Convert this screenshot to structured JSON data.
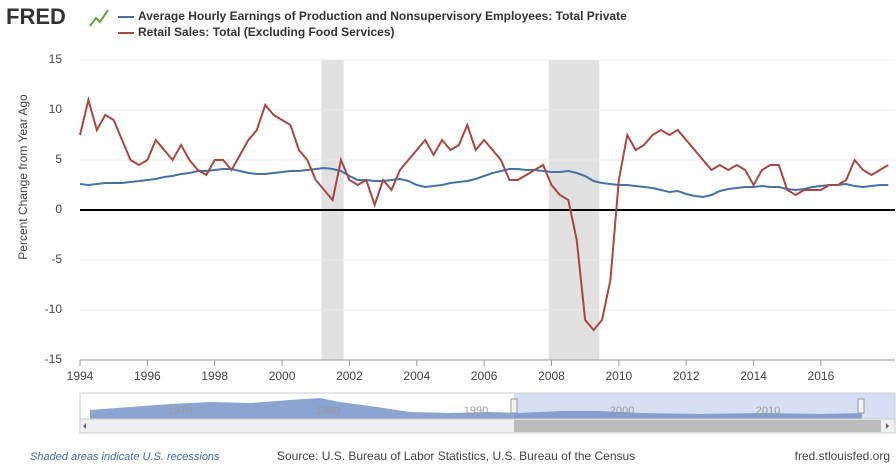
{
  "logo": "FRED",
  "footer": {
    "recessions_note": "Shaded areas indicate U.S. recessions",
    "source": "Source: U.S. Bureau of Labor Statistics, U.S. Bureau of the Census",
    "site": "fred.stlouisfed.org"
  },
  "navigator_labels": [
    "1970",
    "1980",
    "1990",
    "2000",
    "2010"
  ],
  "chart_data": {
    "type": "line",
    "y_label": "Percent Change from Year Ago",
    "xlim": [
      1994,
      2018.2
    ],
    "xticks": [
      1994,
      1996,
      1998,
      2000,
      2002,
      2004,
      2006,
      2008,
      2010,
      2012,
      2014,
      2016
    ],
    "ylim": [
      -15,
      15
    ],
    "yticks": [
      -15,
      -10,
      -5,
      0,
      5,
      10,
      15
    ],
    "grid": true,
    "recessions": [
      [
        2001.17,
        2001.83
      ],
      [
        2007.92,
        2009.42
      ]
    ],
    "x": [
      1994,
      1994.25,
      1994.5,
      1994.75,
      1995,
      1995.25,
      1995.5,
      1995.75,
      1996,
      1996.25,
      1996.5,
      1996.75,
      1997,
      1997.25,
      1997.5,
      1997.75,
      1998,
      1998.25,
      1998.5,
      1998.75,
      1999,
      1999.25,
      1999.5,
      1999.75,
      2000,
      2000.25,
      2000.5,
      2000.75,
      2001,
      2001.25,
      2001.5,
      2001.75,
      2002,
      2002.25,
      2002.5,
      2002.75,
      2003,
      2003.25,
      2003.5,
      2003.75,
      2004,
      2004.25,
      2004.5,
      2004.75,
      2005,
      2005.25,
      2005.5,
      2005.75,
      2006,
      2006.25,
      2006.5,
      2006.75,
      2007,
      2007.25,
      2007.5,
      2007.75,
      2008,
      2008.25,
      2008.5,
      2008.75,
      2009,
      2009.25,
      2009.5,
      2009.75,
      2010,
      2010.25,
      2010.5,
      2010.75,
      2011,
      2011.25,
      2011.5,
      2011.75,
      2012,
      2012.25,
      2012.5,
      2012.75,
      2013,
      2013.25,
      2013.5,
      2013.75,
      2014,
      2014.25,
      2014.5,
      2014.75,
      2015,
      2015.25,
      2015.5,
      2015.75,
      2016,
      2016.25,
      2016.5,
      2016.75,
      2017,
      2017.25,
      2017.5,
      2017.75,
      2018
    ],
    "series": [
      {
        "name": "Average Hourly Earnings of Production and Nonsupervisory Employees: Total Private",
        "color": "#4572a7",
        "values": [
          2.6,
          2.5,
          2.6,
          2.7,
          2.7,
          2.7,
          2.8,
          2.9,
          3.0,
          3.1,
          3.3,
          3.4,
          3.6,
          3.7,
          3.9,
          3.9,
          4.0,
          4.1,
          4.1,
          3.9,
          3.7,
          3.6,
          3.6,
          3.7,
          3.8,
          3.9,
          3.9,
          4.0,
          4.1,
          4.2,
          4.1,
          3.9,
          3.4,
          3.0,
          3.0,
          2.9,
          2.9,
          3.0,
          3.1,
          2.9,
          2.5,
          2.3,
          2.4,
          2.5,
          2.7,
          2.8,
          2.9,
          3.1,
          3.4,
          3.7,
          3.9,
          4.1,
          4.1,
          4.0,
          4.0,
          3.9,
          3.8,
          3.8,
          3.9,
          3.7,
          3.4,
          2.9,
          2.7,
          2.6,
          2.5,
          2.5,
          2.4,
          2.3,
          2.2,
          2.0,
          1.8,
          1.9,
          1.6,
          1.4,
          1.3,
          1.5,
          1.9,
          2.1,
          2.2,
          2.3,
          2.3,
          2.4,
          2.3,
          2.3,
          2.1,
          2.0,
          2.1,
          2.3,
          2.4,
          2.5,
          2.5,
          2.6,
          2.4,
          2.3,
          2.4,
          2.5,
          2.5
        ]
      },
      {
        "name": "Retail Sales: Total (Excluding Food Services)",
        "color": "#aa4643",
        "values": [
          7.5,
          11,
          8,
          9.5,
          9,
          7,
          5,
          4.5,
          5,
          7,
          6,
          5,
          6.5,
          5,
          4,
          3.5,
          5,
          5,
          4,
          5.5,
          7,
          8,
          10.5,
          9.5,
          9,
          8.5,
          6,
          5,
          3,
          2,
          1,
          5,
          3,
          2.5,
          3,
          0.5,
          3,
          2,
          4,
          5,
          6,
          7,
          5.5,
          7,
          6,
          6.5,
          8.5,
          6,
          7,
          6,
          5,
          3,
          3,
          3.5,
          4,
          4.5,
          2.5,
          1.5,
          1,
          -3,
          -11,
          -12,
          -11,
          -7,
          3,
          7.5,
          6,
          6.5,
          7.5,
          8,
          7.5,
          8,
          7,
          6,
          5,
          4,
          4.5,
          4,
          4.5,
          4,
          2.5,
          4,
          4.5,
          4.5,
          2,
          1.5,
          2,
          2,
          2,
          2.5,
          2.5,
          3,
          5,
          4,
          3.5,
          4,
          4.5
        ]
      }
    ]
  }
}
